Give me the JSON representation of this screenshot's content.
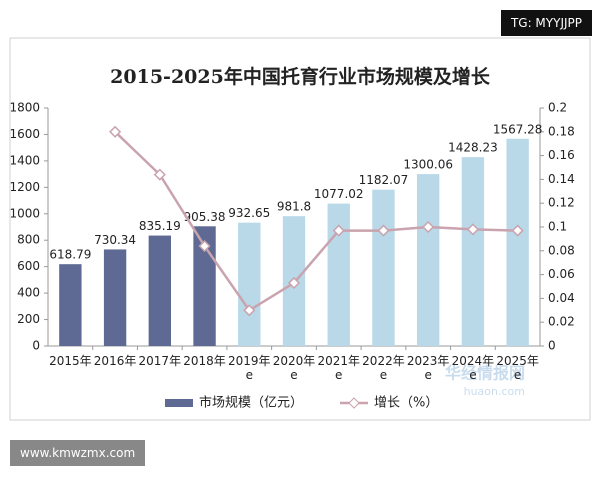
{
  "chart_data": {
    "type": "bar_line",
    "title": "2015-2025年中国托育行业市场规模及增长",
    "categories": [
      "2015年",
      "2016年",
      "2017年",
      "2018年",
      "2019年e",
      "2020年e",
      "2021年e",
      "2022年e",
      "2023年e",
      "2024年e",
      "2025年e"
    ],
    "series": [
      {
        "name": "市场规模（亿元）",
        "type": "bar",
        "colors": [
          "#5e6a93",
          "#5e6a93",
          "#5e6a93",
          "#5e6a93",
          "#b9d8e8",
          "#b9d8e8",
          "#b9d8e8",
          "#b9d8e8",
          "#b9d8e8",
          "#b9d8e8",
          "#b9d8e8"
        ],
        "values": [
          618.79,
          730.34,
          835.19,
          905.38,
          932.65,
          981.8,
          1077.02,
          1182.07,
          1300.06,
          1428.23,
          1567.28
        ]
      },
      {
        "name": "增长（%）",
        "type": "line",
        "axis": "y2",
        "color": "#c9a3ae",
        "values": [
          null,
          0.18,
          0.144,
          0.084,
          0.03,
          0.053,
          0.097,
          0.097,
          0.1,
          0.098,
          0.097
        ]
      }
    ],
    "ylim": [
      0,
      1800
    ],
    "yticks": [
      0,
      200,
      400,
      600,
      800,
      1000,
      1200,
      1400,
      1600,
      1800
    ],
    "y2lim": [
      0,
      0.2
    ],
    "y2ticks": [
      0,
      0.02,
      0.04,
      0.06,
      0.08,
      0.1,
      0.12,
      0.14,
      0.16,
      0.18,
      0.2
    ],
    "grid": false
  },
  "overlays": {
    "top_badge": "TG: MYYJJPP",
    "bottom_badge": "www.kmwzmx.com",
    "watermark": "华经情报网",
    "watermark_url": "huaon.com"
  }
}
